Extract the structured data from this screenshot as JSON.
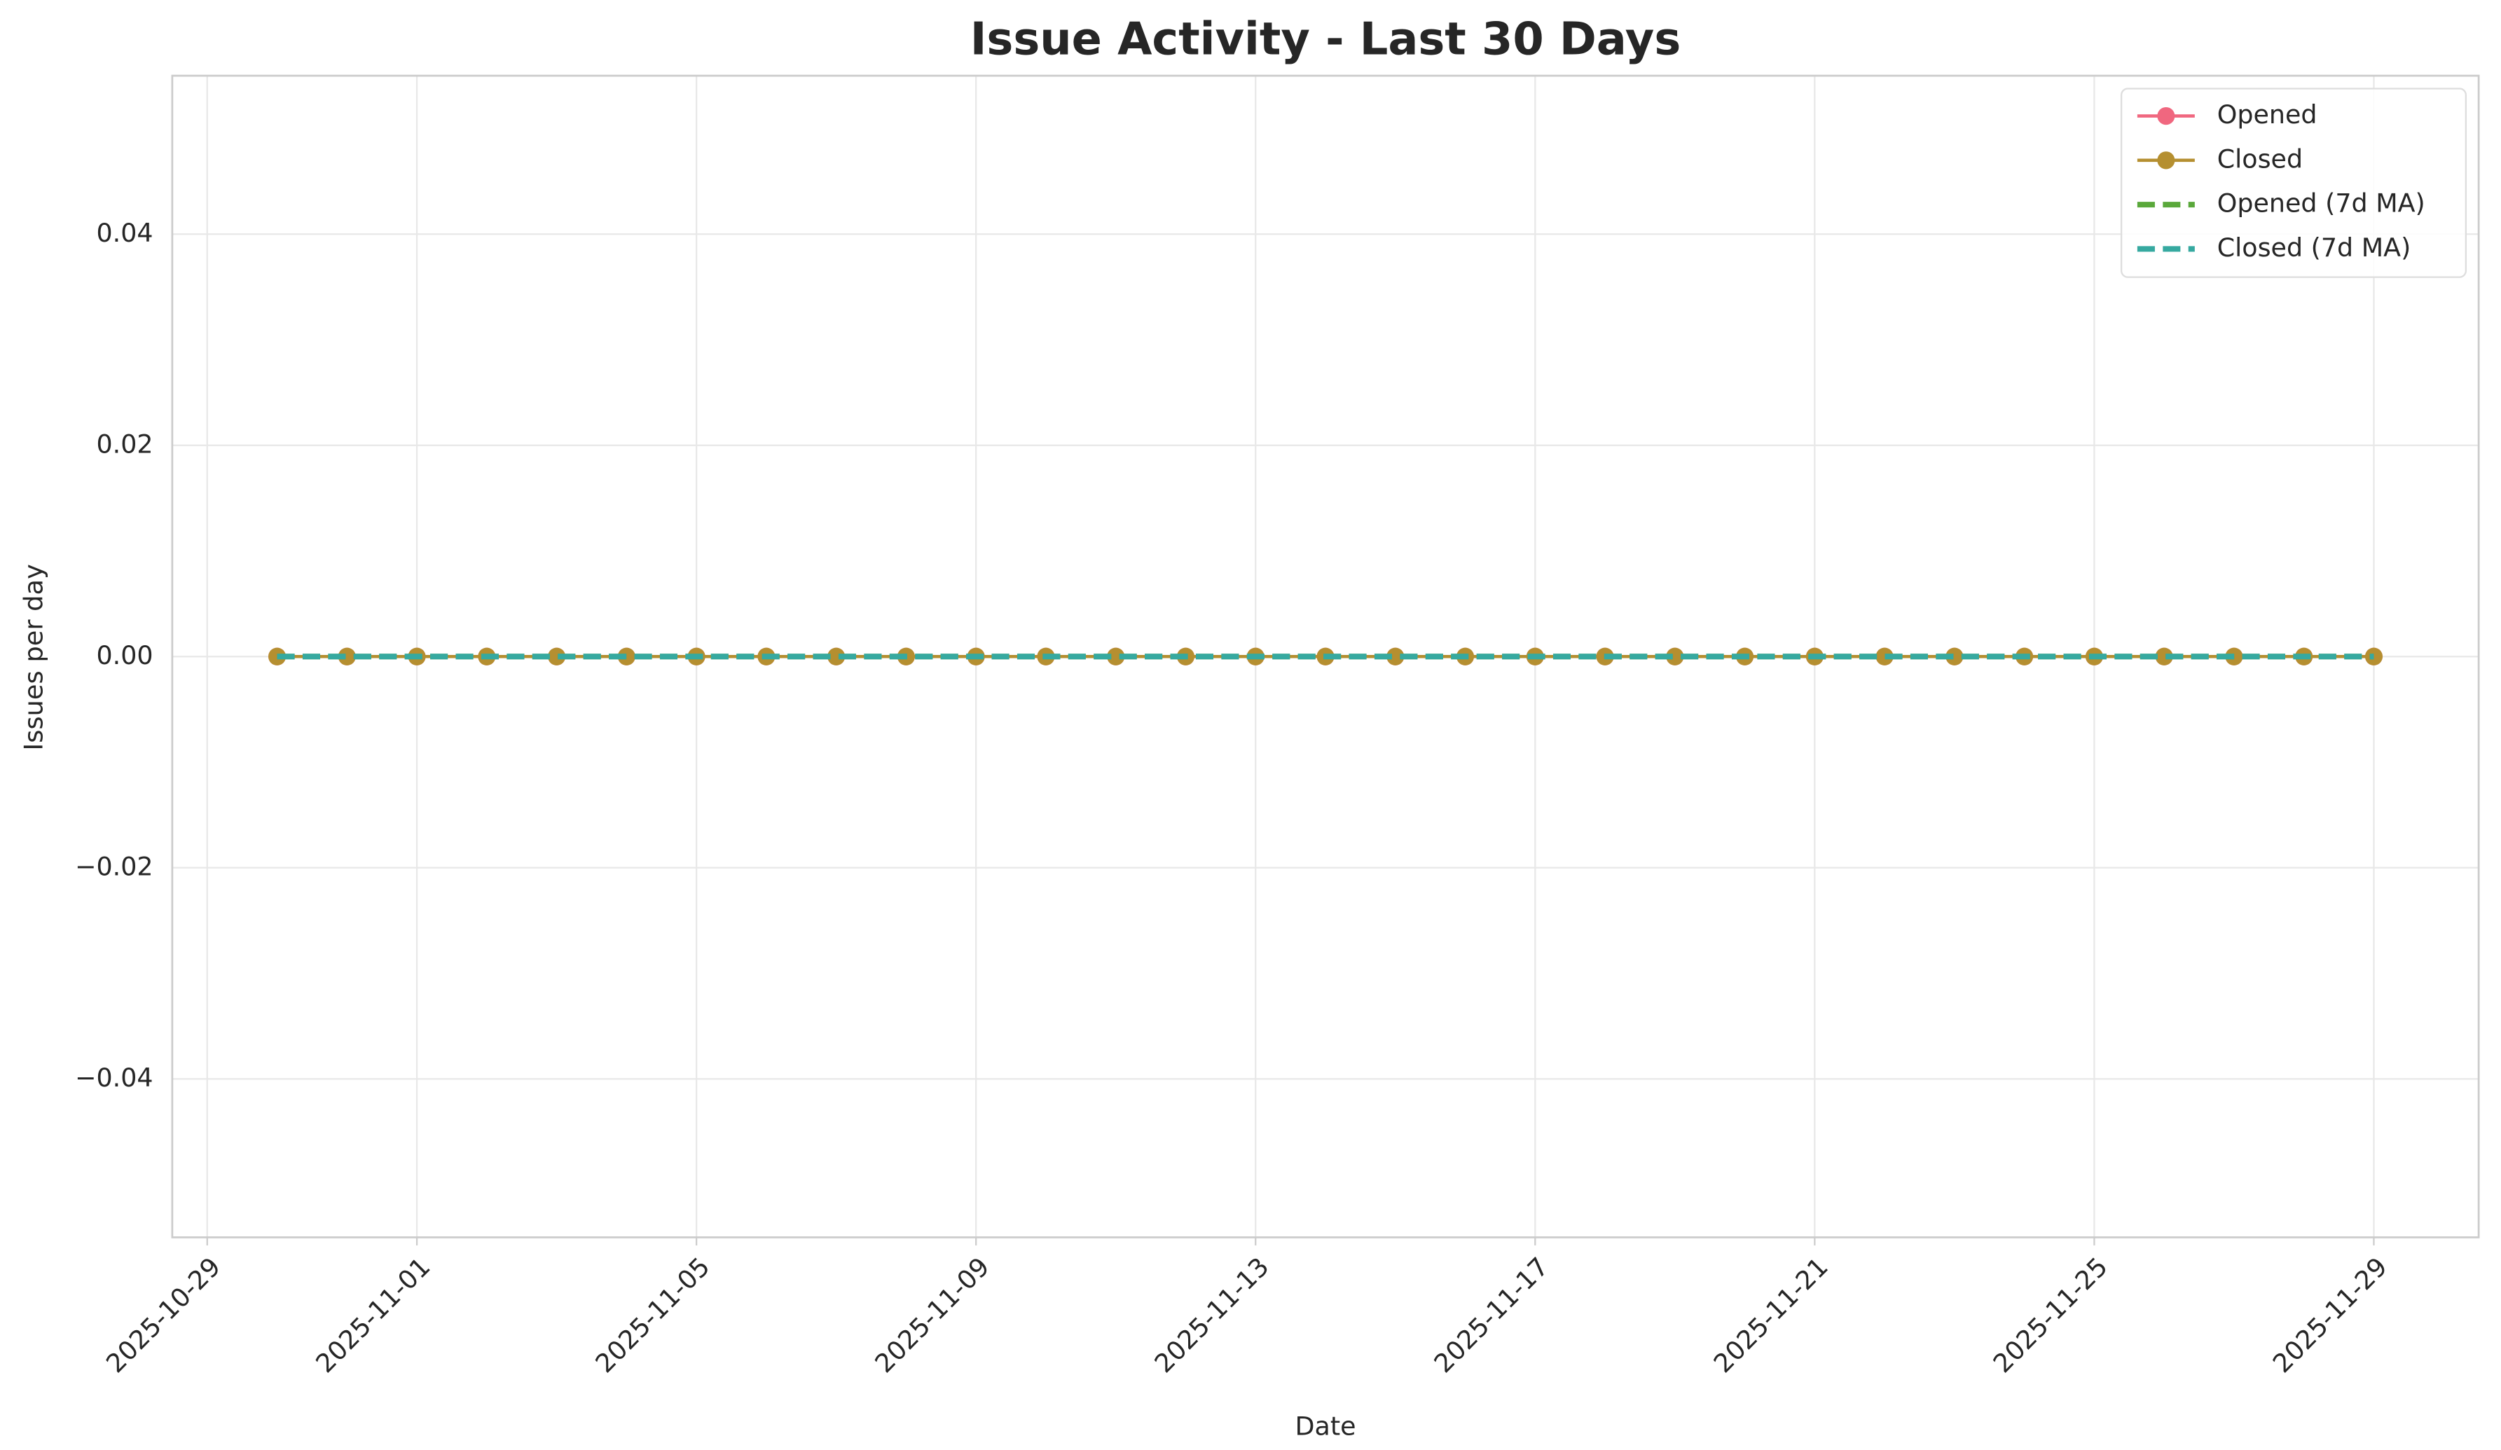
{
  "chart_data": {
    "type": "line",
    "title": "Issue Activity - Last 30 Days",
    "x_label": "Date",
    "y_label": "Issues per day",
    "x": [
      "2025-10-30",
      "2025-10-31",
      "2025-11-01",
      "2025-11-02",
      "2025-11-03",
      "2025-11-04",
      "2025-11-05",
      "2025-11-06",
      "2025-11-07",
      "2025-11-08",
      "2025-11-09",
      "2025-11-10",
      "2025-11-11",
      "2025-11-12",
      "2025-11-13",
      "2025-11-14",
      "2025-11-15",
      "2025-11-16",
      "2025-11-17",
      "2025-11-18",
      "2025-11-19",
      "2025-11-20",
      "2025-11-21",
      "2025-11-22",
      "2025-11-23",
      "2025-11-24",
      "2025-11-25",
      "2025-11-26",
      "2025-11-27",
      "2025-11-28",
      "2025-11-29"
    ],
    "series": [
      {
        "name": "Opened",
        "color": "#f0677f",
        "style": "solid",
        "marker": true,
        "values": [
          0,
          0,
          0,
          0,
          0,
          0,
          0,
          0,
          0,
          0,
          0,
          0,
          0,
          0,
          0,
          0,
          0,
          0,
          0,
          0,
          0,
          0,
          0,
          0,
          0,
          0,
          0,
          0,
          0,
          0,
          0
        ]
      },
      {
        "name": "Closed",
        "color": "#b58f30",
        "style": "solid",
        "marker": true,
        "values": [
          0,
          0,
          0,
          0,
          0,
          0,
          0,
          0,
          0,
          0,
          0,
          0,
          0,
          0,
          0,
          0,
          0,
          0,
          0,
          0,
          0,
          0,
          0,
          0,
          0,
          0,
          0,
          0,
          0,
          0,
          0
        ]
      },
      {
        "name": "Opened (7d MA)",
        "color": "#5aa83b",
        "style": "dashed",
        "marker": false,
        "values": [
          0,
          0,
          0,
          0,
          0,
          0,
          0,
          0,
          0,
          0,
          0,
          0,
          0,
          0,
          0,
          0,
          0,
          0,
          0,
          0,
          0,
          0,
          0,
          0,
          0,
          0,
          0,
          0,
          0,
          0,
          0
        ]
      },
      {
        "name": "Closed (7d MA)",
        "color": "#36a9a0",
        "style": "dashed",
        "marker": false,
        "values": [
          0,
          0,
          0,
          0,
          0,
          0,
          0,
          0,
          0,
          0,
          0,
          0,
          0,
          0,
          0,
          0,
          0,
          0,
          0,
          0,
          0,
          0,
          0,
          0,
          0,
          0,
          0,
          0,
          0,
          0,
          0
        ]
      }
    ],
    "xlim": [
      "2025-10-28T12:00:00Z",
      "2025-11-30T12:00:00Z"
    ],
    "xticks": [
      "2025-10-29",
      "2025-11-01",
      "2025-11-05",
      "2025-11-09",
      "2025-11-13",
      "2025-11-17",
      "2025-11-21",
      "2025-11-25",
      "2025-11-29"
    ],
    "ylim": [
      -0.055,
      0.055
    ],
    "yticks": [
      {
        "value": -0.04,
        "label": "−0.04"
      },
      {
        "value": -0.02,
        "label": "−0.02"
      },
      {
        "value": 0,
        "label": "0.00"
      },
      0.02,
      0.04
    ],
    "grid": true,
    "legend": "upper right"
  }
}
